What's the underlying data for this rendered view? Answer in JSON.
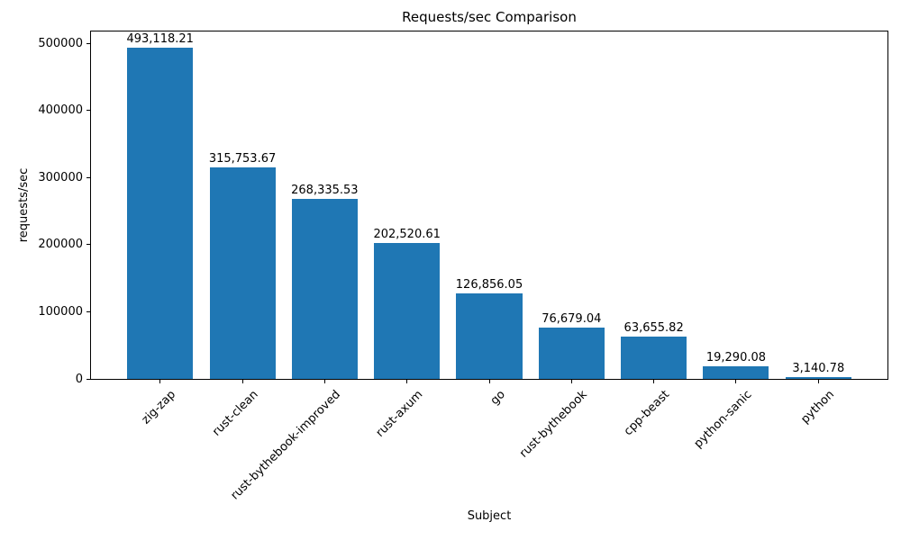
{
  "chart_data": {
    "type": "bar",
    "title": "Requests/sec Comparison",
    "xlabel": "Subject",
    "ylabel": "requests/sec",
    "categories": [
      "zig-zap",
      "rust-clean",
      "rust-bythebook-improved",
      "rust-axum",
      "go",
      "rust-bythebook",
      "cpp-beast",
      "python-sanic",
      "python"
    ],
    "values": [
      493118.21,
      315753.67,
      268335.53,
      202520.61,
      126856.05,
      76679.04,
      63655.82,
      19290.08,
      3140.78
    ],
    "bar_labels": [
      "493,118.21",
      "315,753.67",
      "268,335.53",
      "202,520.61",
      "126,856.05",
      "76,679.04",
      "63,655.82",
      "19,290.08",
      "3,140.78"
    ],
    "bar_color": "#1f77b4",
    "background_color": "#ffffff",
    "ylim": [
      0,
      517774
    ],
    "yticks": [
      0,
      100000,
      200000,
      300000,
      400000,
      500000
    ],
    "ytick_labels": [
      "0",
      "100000",
      "200000",
      "300000",
      "400000",
      "500000"
    ],
    "grid": false,
    "legend_position": "none",
    "bar_width_fraction": 0.8,
    "xtick_rotation_deg": 45
  }
}
